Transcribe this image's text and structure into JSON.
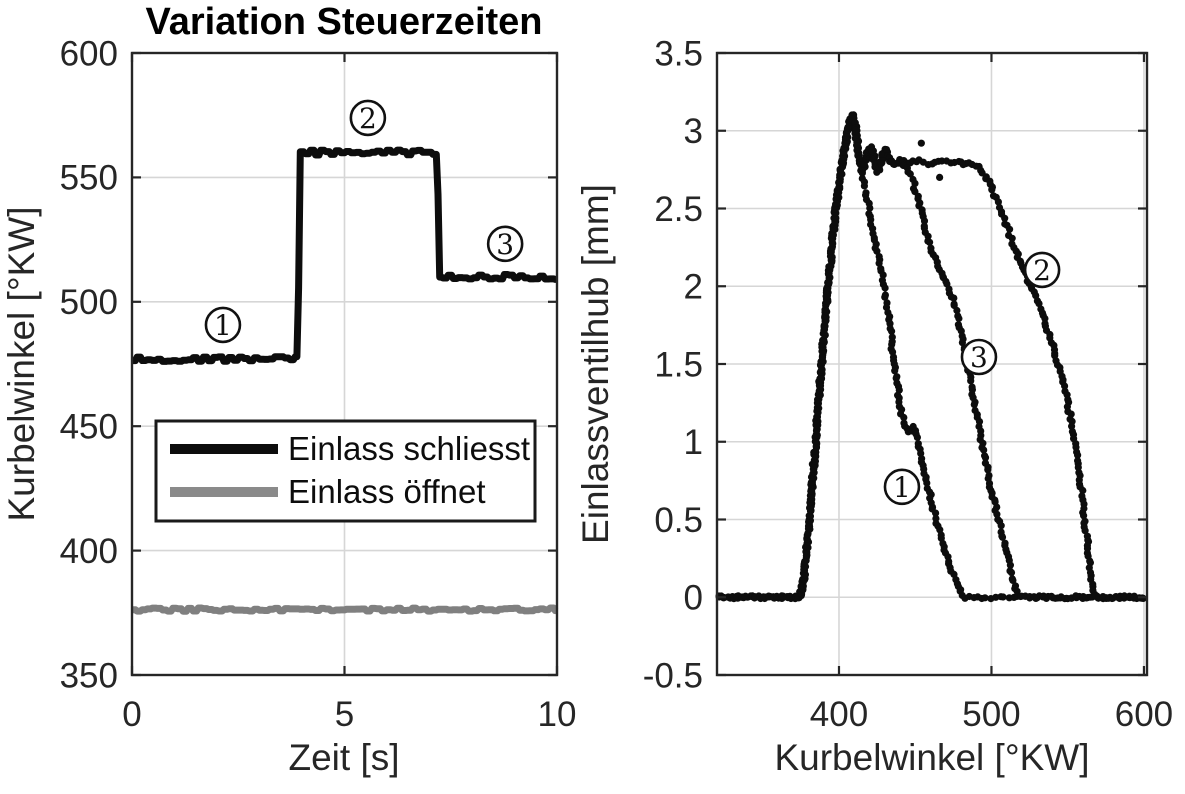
{
  "figure_title": "Variation Steuerzeiten",
  "chart_data": [
    {
      "type": "line",
      "title": "Variation Steuerzeiten",
      "xlabel": "Zeit [s]",
      "ylabel": "Kurbelwinkel [°KW]",
      "xlim": [
        0,
        10
      ],
      "ylim": [
        350,
        600
      ],
      "xticks": [
        0,
        5,
        10
      ],
      "yticks": [
        350,
        400,
        450,
        500,
        550,
        600
      ],
      "grid": true,
      "colors": {
        "axis": "#262626",
        "grid": "#d6d6d6"
      },
      "legend": {
        "position": "middle-left",
        "entries": [
          {
            "label": "Einlass schliesst",
            "color": "#0d0d0d"
          },
          {
            "label": "Einlass öffnet",
            "color": "#8a8a8a"
          }
        ]
      },
      "series": [
        {
          "name": "Einlass schliesst",
          "color": "#0d0d0d",
          "line_width": 7,
          "points": [
            [
              0,
              477
            ],
            [
              3.9,
              477
            ],
            [
              3.96,
              560
            ],
            [
              7.18,
              560
            ],
            [
              7.24,
              510
            ],
            [
              10,
              510
            ]
          ],
          "noise_amplitude": 1.0
        },
        {
          "name": "Einlass öffnet",
          "color": "#808080",
          "line_width": 7,
          "points": [
            [
              0,
              376.3
            ],
            [
              10,
              376.3
            ]
          ],
          "noise_amplitude": 0.7
        }
      ],
      "annotations": [
        {
          "label": "1",
          "x": 2.14,
          "y": 490.7
        },
        {
          "label": "2",
          "x": 5.55,
          "y": 573.9
        },
        {
          "label": "3",
          "x": 8.78,
          "y": 523.3
        }
      ]
    },
    {
      "type": "scatter",
      "title": "",
      "xlabel": "Kurbelwinkel [°KW]",
      "ylabel": "Einlassventilhub [mm]",
      "xlim": [
        320,
        602
      ],
      "ylim": [
        -0.5,
        3.5
      ],
      "xticks": [
        400,
        500,
        600
      ],
      "yticks": [
        -0.5,
        0,
        0.5,
        1,
        1.5,
        2,
        2.5,
        3,
        3.5
      ],
      "grid": true,
      "colors": {
        "axis": "#262626",
        "grid": "#d6d6d6",
        "marker": "#0d0d0d"
      },
      "marker_radius": 3.6,
      "series": [
        {
          "name": "1",
          "anchors": [
            [
              322,
              0
            ],
            [
              360,
              0
            ],
            [
              374,
              0
            ],
            [
              375,
              0.03
            ],
            [
              377,
              0.12
            ],
            [
              379,
              0.32
            ],
            [
              381,
              0.55
            ],
            [
              383,
              0.8
            ],
            [
              385,
              1.05
            ],
            [
              387,
              1.3
            ],
            [
              389,
              1.55
            ],
            [
              391,
              1.8
            ],
            [
              393,
              2.02
            ],
            [
              395,
              2.22
            ],
            [
              397,
              2.42
            ],
            [
              399,
              2.58
            ],
            [
              401,
              2.72
            ],
            [
              403,
              2.84
            ],
            [
              405,
              2.96
            ],
            [
              407,
              3.05
            ],
            [
              409,
              3.1
            ],
            [
              412,
              2.92
            ],
            [
              415,
              2.75
            ],
            [
              418,
              2.58
            ],
            [
              421,
              2.42
            ],
            [
              424,
              2.27
            ],
            [
              427,
              2.12
            ],
            [
              430,
              1.98
            ],
            [
              433,
              1.78
            ],
            [
              435,
              1.6
            ],
            [
              437,
              1.45
            ],
            [
              439,
              1.3
            ],
            [
              441,
              1.18
            ],
            [
              443,
              1.1
            ],
            [
              446,
              1.06
            ],
            [
              449,
              1.09
            ],
            [
              451,
              1.02
            ],
            [
              453,
              0.92
            ],
            [
              456,
              0.8
            ],
            [
              459,
              0.68
            ],
            [
              462,
              0.56
            ],
            [
              465,
              0.45
            ],
            [
              468,
              0.35
            ],
            [
              471,
              0.26
            ],
            [
              474,
              0.17
            ],
            [
              477,
              0.09
            ],
            [
              480,
              0.03
            ],
            [
              482,
              0
            ],
            [
              602,
              0
            ]
          ]
        },
        {
          "name": "2",
          "anchors": [
            [
              322,
              0
            ],
            [
              360,
              0
            ],
            [
              374,
              0
            ],
            [
              375,
              0.03
            ],
            [
              377,
              0.12
            ],
            [
              379,
              0.32
            ],
            [
              381,
              0.55
            ],
            [
              383,
              0.8
            ],
            [
              385,
              1.05
            ],
            [
              387,
              1.3
            ],
            [
              389,
              1.55
            ],
            [
              391,
              1.8
            ],
            [
              393,
              2.02
            ],
            [
              395,
              2.22
            ],
            [
              397,
              2.42
            ],
            [
              399,
              2.58
            ],
            [
              401,
              2.72
            ],
            [
              403,
              2.84
            ],
            [
              405,
              2.96
            ],
            [
              407,
              3.05
            ],
            [
              409,
              3.1
            ],
            [
              411,
              3.02
            ],
            [
              413,
              2.86
            ],
            [
              415,
              2.74
            ],
            [
              417,
              2.79
            ],
            [
              419,
              2.88
            ],
            [
              421,
              2.9
            ],
            [
              423,
              2.83
            ],
            [
              425,
              2.74
            ],
            [
              427,
              2.77
            ],
            [
              429,
              2.86
            ],
            [
              431,
              2.88
            ],
            [
              433,
              2.81
            ],
            [
              436,
              2.79
            ],
            [
              440,
              2.81
            ],
            [
              444,
              2.79
            ],
            [
              448,
              2.8
            ],
            [
              453,
              2.81
            ],
            [
              458,
              2.79
            ],
            [
              463,
              2.8
            ],
            [
              468,
              2.81
            ],
            [
              473,
              2.79
            ],
            [
              478,
              2.8
            ],
            [
              482,
              2.79
            ],
            [
              486,
              2.8
            ],
            [
              490,
              2.78
            ],
            [
              493,
              2.75
            ],
            [
              496,
              2.71
            ],
            [
              499,
              2.66
            ],
            [
              502,
              2.59
            ],
            [
              505,
              2.51
            ],
            [
              508,
              2.43
            ],
            [
              511,
              2.36
            ],
            [
              514,
              2.28
            ],
            [
              517,
              2.21
            ],
            [
              520,
              2.12
            ],
            [
              524,
              2.04
            ],
            [
              528,
              1.96
            ],
            [
              532,
              1.86
            ],
            [
              536,
              1.74
            ],
            [
              540,
              1.62
            ],
            [
              544,
              1.5
            ],
            [
              547,
              1.38
            ],
            [
              550,
              1.25
            ],
            [
              553,
              1.1
            ],
            [
              555,
              0.97
            ],
            [
              557,
              0.83
            ],
            [
              559,
              0.68
            ],
            [
              561,
              0.52
            ],
            [
              562,
              0.42
            ],
            [
              563,
              0.33
            ],
            [
              564,
              0.24
            ],
            [
              565,
              0.16
            ],
            [
              566,
              0.09
            ],
            [
              568,
              0.02
            ],
            [
              570,
              0
            ],
            [
              602,
              0
            ]
          ]
        },
        {
          "name": "3",
          "anchors": [
            [
              322,
              0
            ],
            [
              360,
              0
            ],
            [
              374,
              0
            ],
            [
              375,
              0.03
            ],
            [
              377,
              0.12
            ],
            [
              379,
              0.32
            ],
            [
              381,
              0.55
            ],
            [
              383,
              0.8
            ],
            [
              385,
              1.05
            ],
            [
              387,
              1.3
            ],
            [
              389,
              1.55
            ],
            [
              391,
              1.8
            ],
            [
              393,
              2.02
            ],
            [
              395,
              2.22
            ],
            [
              397,
              2.42
            ],
            [
              399,
              2.58
            ],
            [
              401,
              2.72
            ],
            [
              403,
              2.84
            ],
            [
              405,
              2.96
            ],
            [
              407,
              3.05
            ],
            [
              409,
              3.1
            ],
            [
              411,
              3.0
            ],
            [
              413,
              2.82
            ],
            [
              415,
              2.73
            ],
            [
              417,
              2.79
            ],
            [
              419,
              2.88
            ],
            [
              421,
              2.89
            ],
            [
              423,
              2.81
            ],
            [
              425,
              2.75
            ],
            [
              427,
              2.78
            ],
            [
              429,
              2.85
            ],
            [
              431,
              2.87
            ],
            [
              434,
              2.8
            ],
            [
              437,
              2.79
            ],
            [
              440,
              2.8
            ],
            [
              443,
              2.78
            ],
            [
              446,
              2.74
            ],
            [
              449,
              2.66
            ],
            [
              452,
              2.56
            ],
            [
              455,
              2.44
            ],
            [
              458,
              2.32
            ],
            [
              461,
              2.23
            ],
            [
              464,
              2.15
            ],
            [
              467,
              2.09
            ],
            [
              470,
              2.03
            ],
            [
              473,
              1.96
            ],
            [
              476,
              1.87
            ],
            [
              479,
              1.76
            ],
            [
              481,
              1.66
            ],
            [
              483,
              1.56
            ],
            [
              485,
              1.46
            ],
            [
              487,
              1.36
            ],
            [
              489,
              1.26
            ],
            [
              491,
              1.15
            ],
            [
              493,
              1.04
            ],
            [
              495,
              0.94
            ],
            [
              497,
              0.84
            ],
            [
              499,
              0.74
            ],
            [
              501,
              0.65
            ],
            [
              503,
              0.56
            ],
            [
              505,
              0.48
            ],
            [
              507,
              0.4
            ],
            [
              509,
              0.31
            ],
            [
              511,
              0.23
            ],
            [
              513,
              0.15
            ],
            [
              515,
              0.08
            ],
            [
              517,
              0.03
            ],
            [
              519,
              0
            ],
            [
              602,
              0
            ]
          ]
        }
      ],
      "stray_points": [
        [
          454,
          2.92
        ],
        [
          466,
          2.7
        ]
      ],
      "annotations": [
        {
          "label": "1",
          "x": 441.3,
          "y": 0.71
        },
        {
          "label": "2",
          "x": 533.2,
          "y": 2.105
        },
        {
          "label": "3",
          "x": 491.8,
          "y": 1.545
        }
      ]
    }
  ]
}
